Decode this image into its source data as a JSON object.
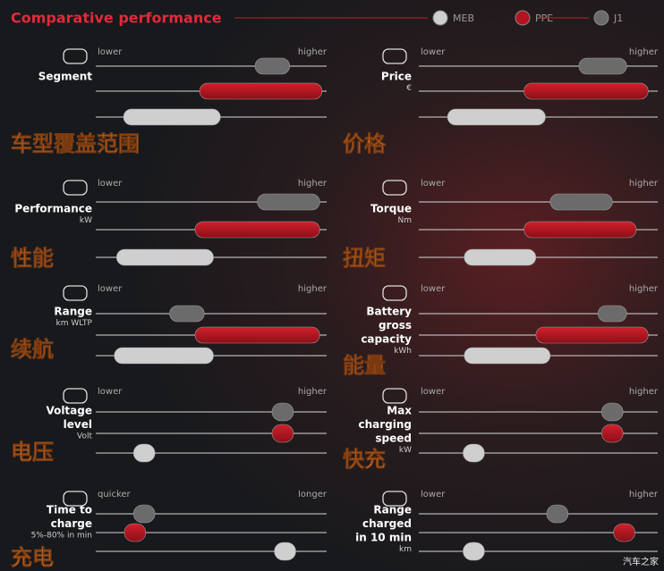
{
  "chart_data": {
    "type": "range",
    "title": "Comparative performance",
    "legend": [
      {
        "name": "MEB",
        "color": "#cfcfcf"
      },
      {
        "name": "PPE",
        "color": "#b3141f"
      },
      {
        "name": "J1",
        "color": "#6b6b6b"
      }
    ],
    "xlim": [
      0,
      100
    ],
    "panels": [
      {
        "label": [
          "Segment"
        ],
        "low": "lower",
        "high": "higher",
        "note": "车型覆盖范围",
        "ranges": [
          [
            12,
            54
          ],
          [
            45,
            98
          ],
          [
            69,
            84
          ]
        ]
      },
      {
        "label": [
          "Price"
        ],
        "unit": "€",
        "low": "lower",
        "high": "higher",
        "note": "价格",
        "ranges": [
          [
            12,
            53
          ],
          [
            44,
            96
          ],
          [
            67,
            87
          ]
        ]
      },
      {
        "label": [
          "Performance"
        ],
        "unit": "kW",
        "low": "lower",
        "high": "higher",
        "note": "性能",
        "ranges": [
          [
            9,
            51
          ],
          [
            43,
            97
          ],
          [
            70,
            97
          ]
        ]
      },
      {
        "label": [
          "Torque"
        ],
        "unit": "Nm",
        "low": "lower",
        "high": "higher",
        "note": "扭矩",
        "ranges": [
          [
            19,
            49
          ],
          [
            44,
            91
          ],
          [
            55,
            81
          ]
        ]
      },
      {
        "label": [
          "Range"
        ],
        "unit": "km WLTP",
        "low": "lower",
        "high": "higher",
        "note": "续航",
        "ranges": [
          [
            8,
            51
          ],
          [
            43,
            97
          ],
          [
            32,
            47
          ]
        ]
      },
      {
        "label": [
          "Battery",
          "gross",
          "capacity"
        ],
        "unit": "kWh",
        "low": "lower",
        "high": "higher",
        "note": "能量",
        "ranges": [
          [
            19,
            55
          ],
          [
            49,
            96
          ],
          [
            75,
            87
          ]
        ]
      },
      {
        "label": [
          "Voltage",
          "level"
        ],
        "unit": "Volt",
        "low": "lower",
        "high": "higher",
        "note": "电压",
        "points": [
          21,
          81,
          81
        ]
      },
      {
        "label": [
          "Max",
          "charging",
          "speed"
        ],
        "unit": "kW",
        "low": "lower",
        "high": "higher",
        "note": "快充",
        "points": [
          23,
          81,
          81
        ]
      },
      {
        "label": [
          "Time to",
          "charge"
        ],
        "unit": "5%-80% in min",
        "low": "quicker",
        "high": "longer",
        "note": "充电",
        "points": [
          82,
          17,
          21
        ]
      },
      {
        "label": [
          "Range",
          "charged",
          "in 10 min"
        ],
        "unit": "km",
        "low": "lower",
        "high": "higher",
        "points": [
          23,
          86,
          58
        ]
      }
    ],
    "watermark": "汽车之家"
  }
}
